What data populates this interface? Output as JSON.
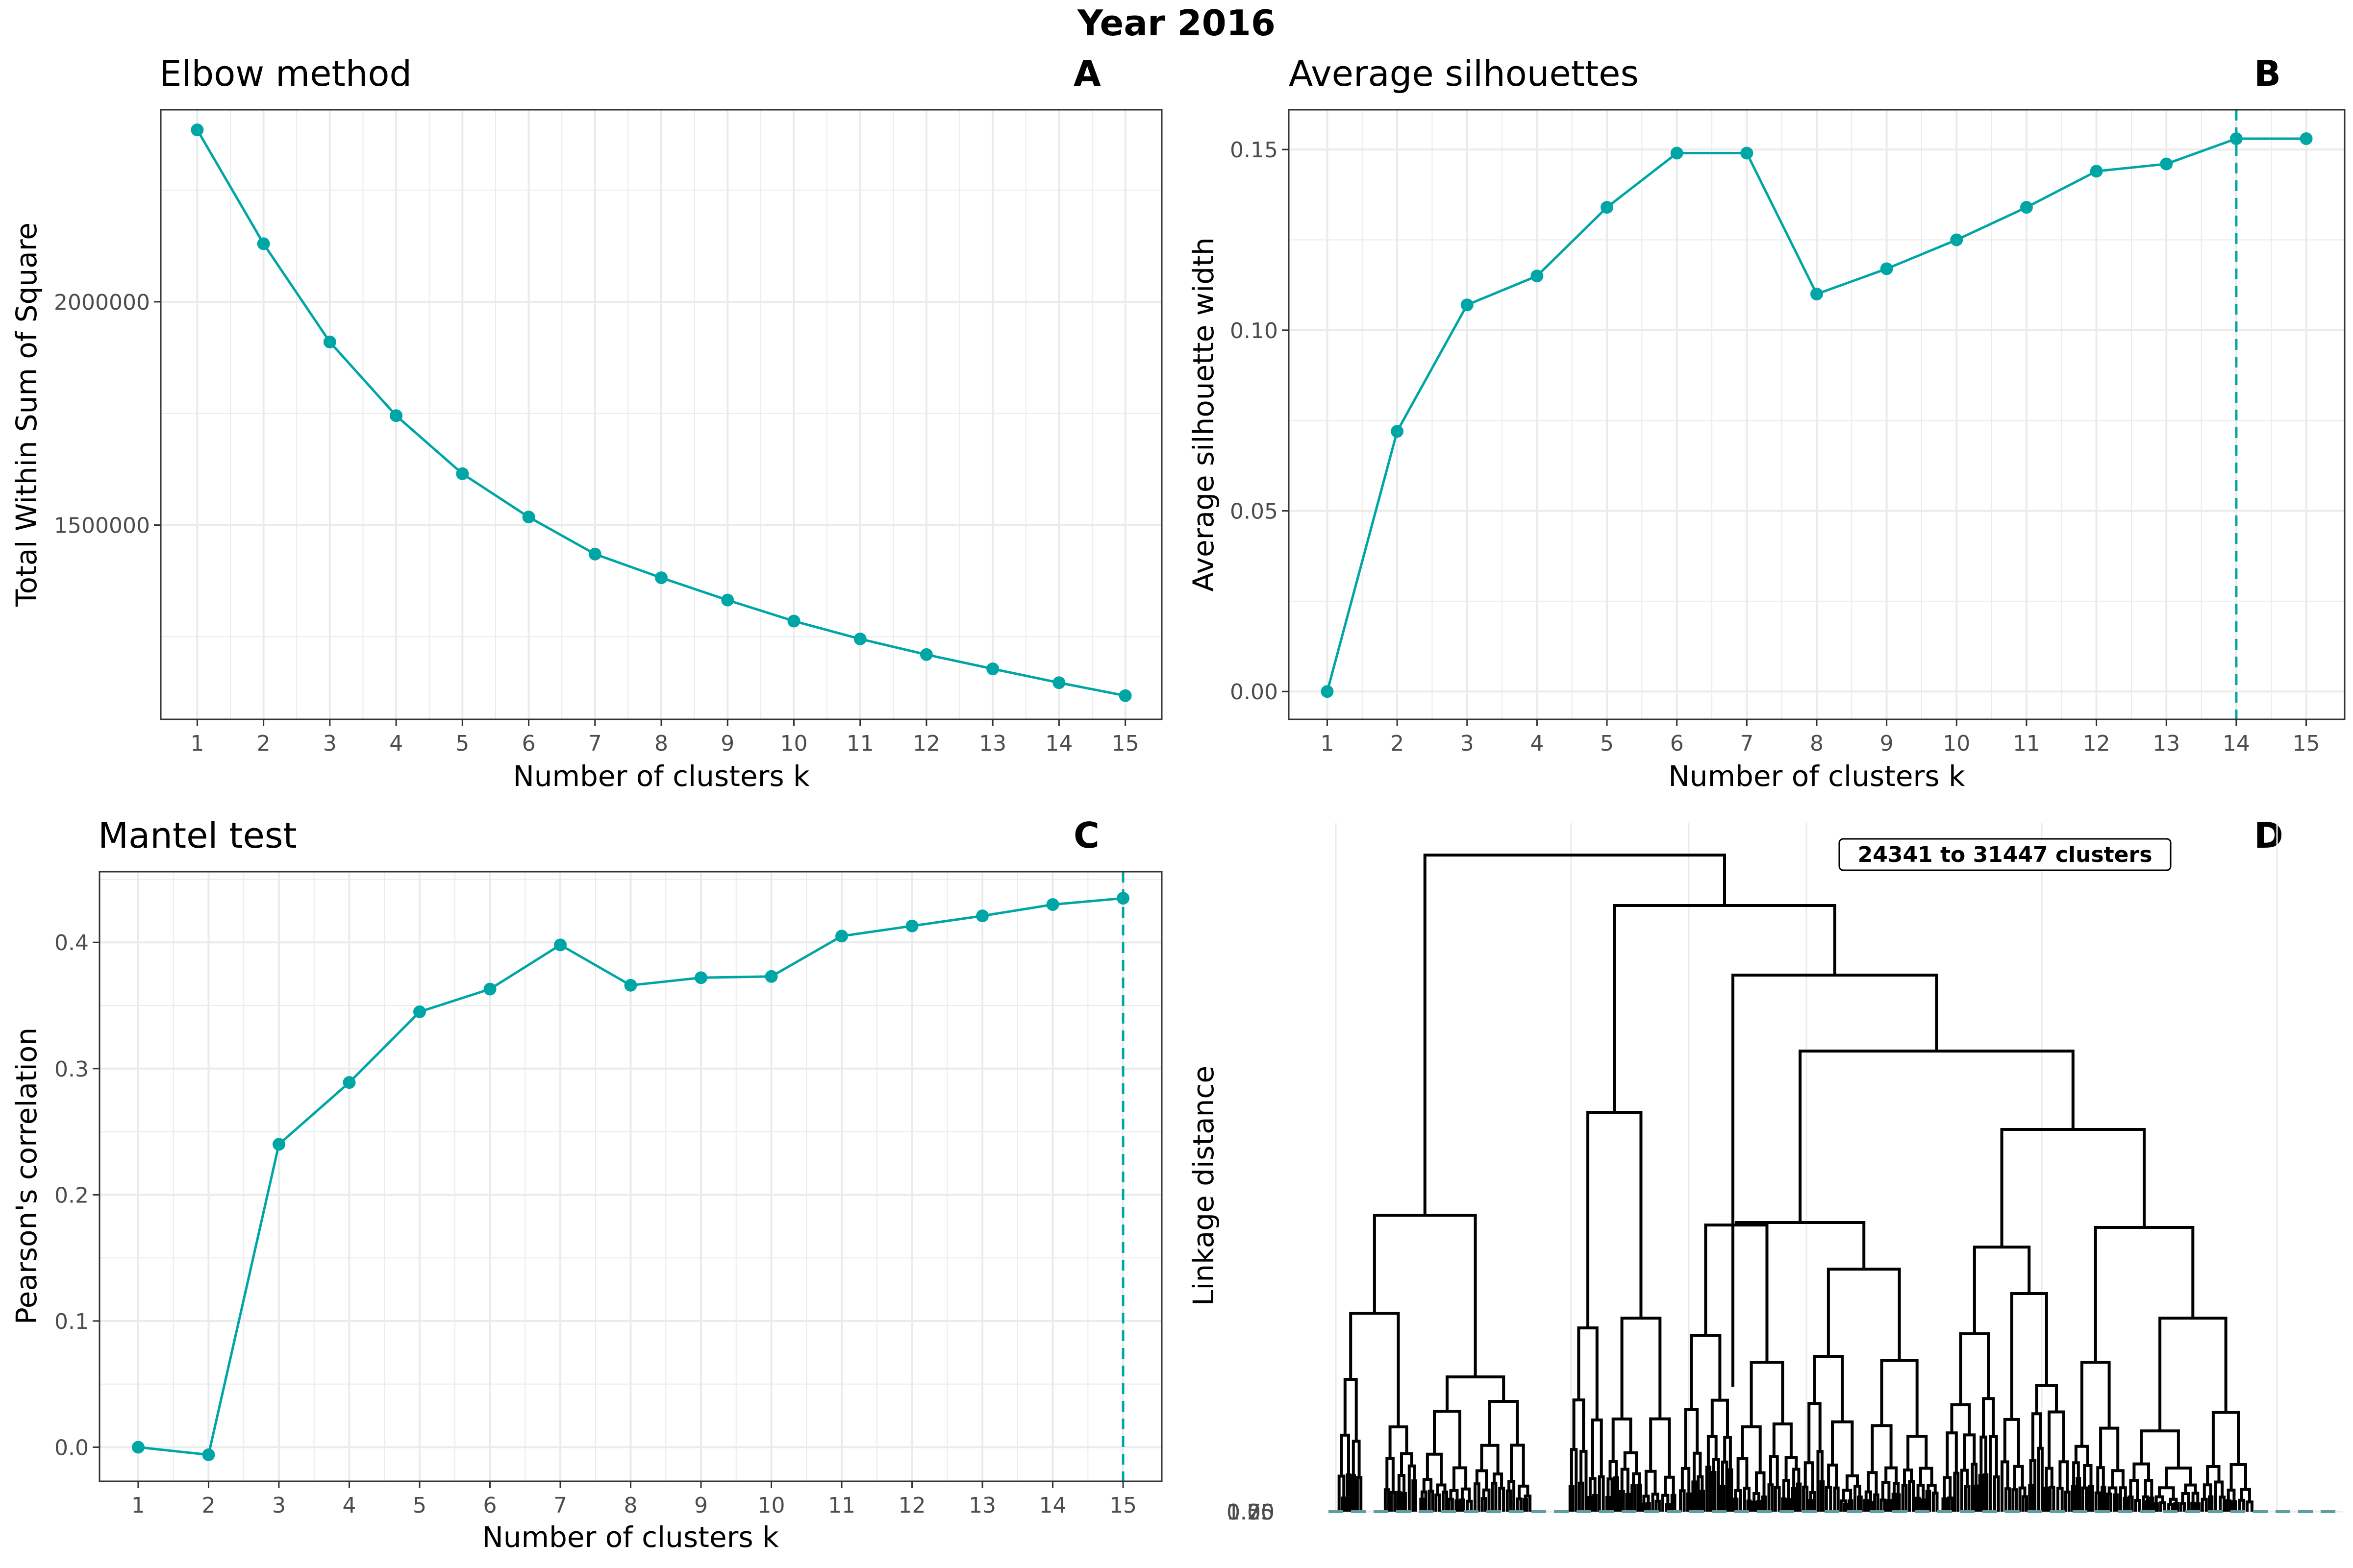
{
  "figure": {
    "title": "Year 2016",
    "line_color": "#00a6a6",
    "grid_color": "#ebebeb",
    "frame_color": "#333333",
    "dendro_baseline_color": "#5f9ea0"
  },
  "chart_data": [
    {
      "id": "A",
      "type": "line",
      "title": "Elbow method",
      "tag": "A",
      "xlabel": "Number of clusters k",
      "ylabel": "Total Within Sum of Square",
      "x": [
        1,
        2,
        3,
        4,
        5,
        6,
        7,
        8,
        9,
        10,
        11,
        12,
        13,
        14,
        15
      ],
      "x_tick_labels": [
        "1",
        "2",
        "3",
        "4",
        "5",
        "6",
        "7",
        "8",
        "9",
        "10",
        "11",
        "12",
        "13",
        "14",
        "15"
      ],
      "y": [
        2385000,
        2130000,
        1910000,
        1745000,
        1615000,
        1518000,
        1435000,
        1382000,
        1332000,
        1285000,
        1245000,
        1210000,
        1178000,
        1147000,
        1118000
      ],
      "y_ticks": [
        1500000,
        2000000
      ],
      "y_tick_labels": [
        "1500000",
        "2000000"
      ],
      "ylim": [
        1065000,
        2430000
      ],
      "xlim": [
        0.45,
        15.55
      ],
      "grid": true
    },
    {
      "id": "B",
      "type": "line",
      "title": "Average silhouettes",
      "tag": "B",
      "xlabel": "Number of clusters k",
      "ylabel": "Average silhouette width",
      "x": [
        1,
        2,
        3,
        4,
        5,
        6,
        7,
        8,
        9,
        10,
        11,
        12,
        13,
        14,
        15
      ],
      "x_tick_labels": [
        "1",
        "2",
        "3",
        "4",
        "5",
        "6",
        "7",
        "8",
        "9",
        "10",
        "11",
        "12",
        "13",
        "14",
        "15"
      ],
      "y": [
        0.0,
        0.072,
        0.107,
        0.115,
        0.134,
        0.149,
        0.149,
        0.11,
        0.117,
        0.125,
        0.134,
        0.144,
        0.146,
        0.153,
        0.153
      ],
      "y_ticks": [
        0.0,
        0.05,
        0.1,
        0.15
      ],
      "y_tick_labels": [
        "0.00",
        "0.05",
        "0.10",
        "0.15"
      ],
      "ylim": [
        -0.0077,
        0.161
      ],
      "xlim": [
        0.45,
        15.55
      ],
      "vline_x": 14,
      "grid": true
    },
    {
      "id": "C",
      "type": "line",
      "title": "Mantel test",
      "tag": "C",
      "xlabel": "Number of clusters k",
      "ylabel": "Pearson's correlation",
      "x": [
        1,
        2,
        3,
        4,
        5,
        6,
        7,
        8,
        9,
        10,
        11,
        12,
        13,
        14,
        15
      ],
      "x_tick_labels": [
        "1",
        "2",
        "3",
        "4",
        "5",
        "6",
        "7",
        "8",
        "9",
        "10",
        "11",
        "12",
        "13",
        "14",
        "15"
      ],
      "y": [
        0.0,
        -0.006,
        0.24,
        0.289,
        0.345,
        0.363,
        0.398,
        0.366,
        0.372,
        0.373,
        0.405,
        0.413,
        0.421,
        0.43,
        0.435
      ],
      "y_ticks": [
        0.0,
        0.1,
        0.2,
        0.3,
        0.4
      ],
      "y_tick_labels": [
        "0.0",
        "0.1",
        "0.2",
        "0.3",
        "0.4"
      ],
      "ylim": [
        -0.027,
        0.456
      ],
      "xlim": [
        0.45,
        15.55
      ],
      "vline_x": 15,
      "grid": true
    },
    {
      "id": "D",
      "type": "dendrogram",
      "tag": "D",
      "ylabel": "Linkage distance",
      "annotation": "24341 to 31447 clusters",
      "y_tick_labels": [
        "0.00",
        "0.25",
        "0.50",
        "0.75",
        "1.00"
      ],
      "grid": true
    }
  ]
}
